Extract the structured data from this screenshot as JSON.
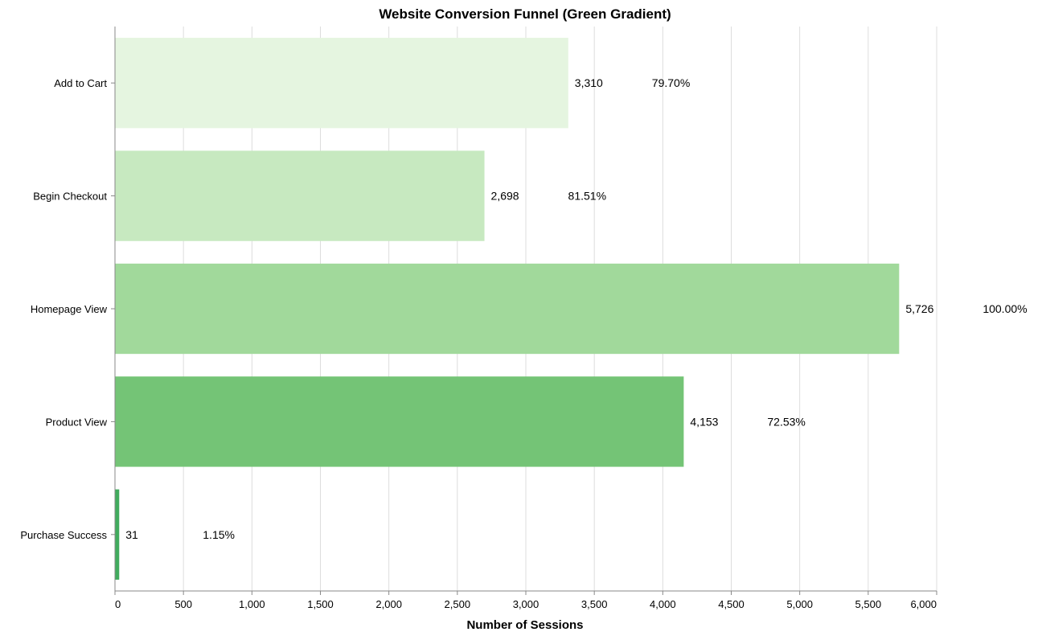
{
  "chart_data": {
    "type": "bar",
    "orientation": "horizontal",
    "title": "Website Conversion Funnel (Green Gradient)",
    "xlabel": "Number of Sessions",
    "ylabel": "",
    "xlim": [
      0,
      6000
    ],
    "xticks": [
      0,
      500,
      1000,
      1500,
      2000,
      2500,
      3000,
      3500,
      4000,
      4500,
      5000,
      5500,
      6000
    ],
    "xtick_labels": [
      "0",
      "500",
      "1,000",
      "1,500",
      "2,000",
      "2,500",
      "3,000",
      "3,500",
      "4,000",
      "4,500",
      "5,000",
      "5,500",
      "6,000"
    ],
    "grid": true,
    "categories": [
      "Add to Cart",
      "Begin Checkout",
      "Homepage View",
      "Product View",
      "Purchase Success"
    ],
    "values": [
      3310,
      2698,
      5726,
      4153,
      31
    ],
    "value_labels": [
      "3,310",
      "2,698",
      "5,726",
      "4,153",
      "31"
    ],
    "percent_labels": [
      "79.70%",
      "81.51%",
      "100.00%",
      "72.53%",
      "1.15%"
    ],
    "colors": [
      "#e5f5e0",
      "#c7e9c0",
      "#a1d99b",
      "#74c476",
      "#41ab5d"
    ]
  }
}
